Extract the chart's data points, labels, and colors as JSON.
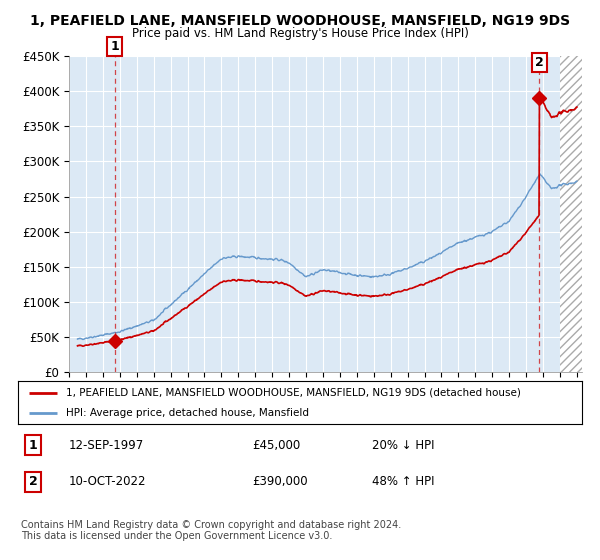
{
  "title": "1, PEAFIELD LANE, MANSFIELD WOODHOUSE, MANSFIELD, NG19 9DS",
  "subtitle": "Price paid vs. HM Land Registry's House Price Index (HPI)",
  "ylim": [
    0,
    450000
  ],
  "yticks": [
    0,
    50000,
    100000,
    150000,
    200000,
    250000,
    300000,
    350000,
    400000,
    450000
  ],
  "ytick_labels": [
    "£0",
    "£50K",
    "£100K",
    "£150K",
    "£200K",
    "£250K",
    "£300K",
    "£350K",
    "£400K",
    "£450K"
  ],
  "xlim_start": 1995.3,
  "xlim_end": 2025.3,
  "hpi_color": "#6699CC",
  "price_color": "#CC0000",
  "dashed_color": "#CC0000",
  "bg_color": "#FFFFFF",
  "plot_bg_color": "#DCE9F5",
  "grid_color": "#FFFFFF",
  "sale1_year": 1997.7,
  "sale1_price": 45000,
  "sale2_year": 2022.78,
  "sale2_price": 390000,
  "legend1_text": "1, PEAFIELD LANE, MANSFIELD WOODHOUSE, MANSFIELD, NG19 9DS (detached house)",
  "legend2_text": "HPI: Average price, detached house, Mansfield",
  "annot1_label": "1",
  "annot2_label": "2",
  "footer": "Contains HM Land Registry data © Crown copyright and database right 2024.\nThis data is licensed under the Open Government Licence v3.0."
}
